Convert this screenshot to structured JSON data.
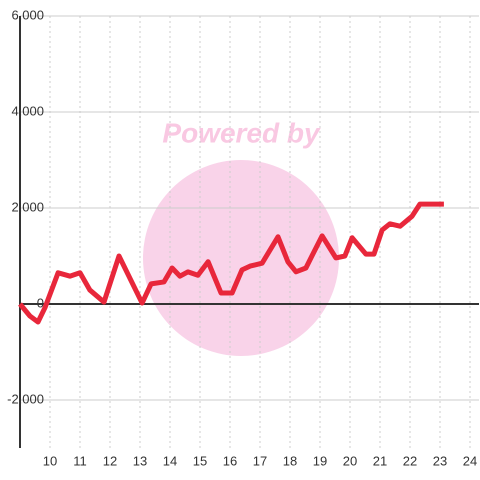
{
  "chart_data": {
    "type": "line",
    "watermark": "Powered by",
    "x": [
      9,
      9.33,
      9.6,
      9.83,
      10.27,
      10.67,
      11,
      11.33,
      11.8,
      12.3,
      13.07,
      13.37,
      13.8,
      14.07,
      14.33,
      14.6,
      14.93,
      15.27,
      15.7,
      16.07,
      16.4,
      16.67,
      17.07,
      17.6,
      17.93,
      18.2,
      18.53,
      18.73,
      19.07,
      19.53,
      19.83,
      20.07,
      20.53,
      20.8,
      21.07,
      21.33,
      21.67,
      22.07,
      22.33,
      23.13
    ],
    "series": [
      {
        "color": "#e8273b",
        "values": [
          0,
          -250,
          -375,
          -80,
          650,
          580,
          650,
          290,
          40,
          1000,
          20,
          420,
          460,
          750,
          580,
          670,
          600,
          880,
          230,
          230,
          710,
          790,
          850,
          1400,
          880,
          670,
          750,
          1000,
          1420,
          960,
          1000,
          1380,
          1040,
          1040,
          1540,
          1670,
          1620,
          1830,
          2080,
          2080
        ]
      }
    ],
    "xlim": [
      9,
      24.3
    ],
    "xticks": [
      10,
      11,
      12,
      13,
      14,
      15,
      16,
      17,
      18,
      19,
      20,
      21,
      22,
      23,
      24
    ],
    "ylim": [
      -3000,
      6000
    ],
    "yticks": [
      {
        "value": -2000,
        "label": "-2,000"
      },
      0,
      {
        "value": 2000,
        "label": "2,000"
      },
      {
        "value": 4000,
        "label": "4,000"
      },
      {
        "value": 6000,
        "label": "6,000"
      }
    ],
    "grid": true
  }
}
